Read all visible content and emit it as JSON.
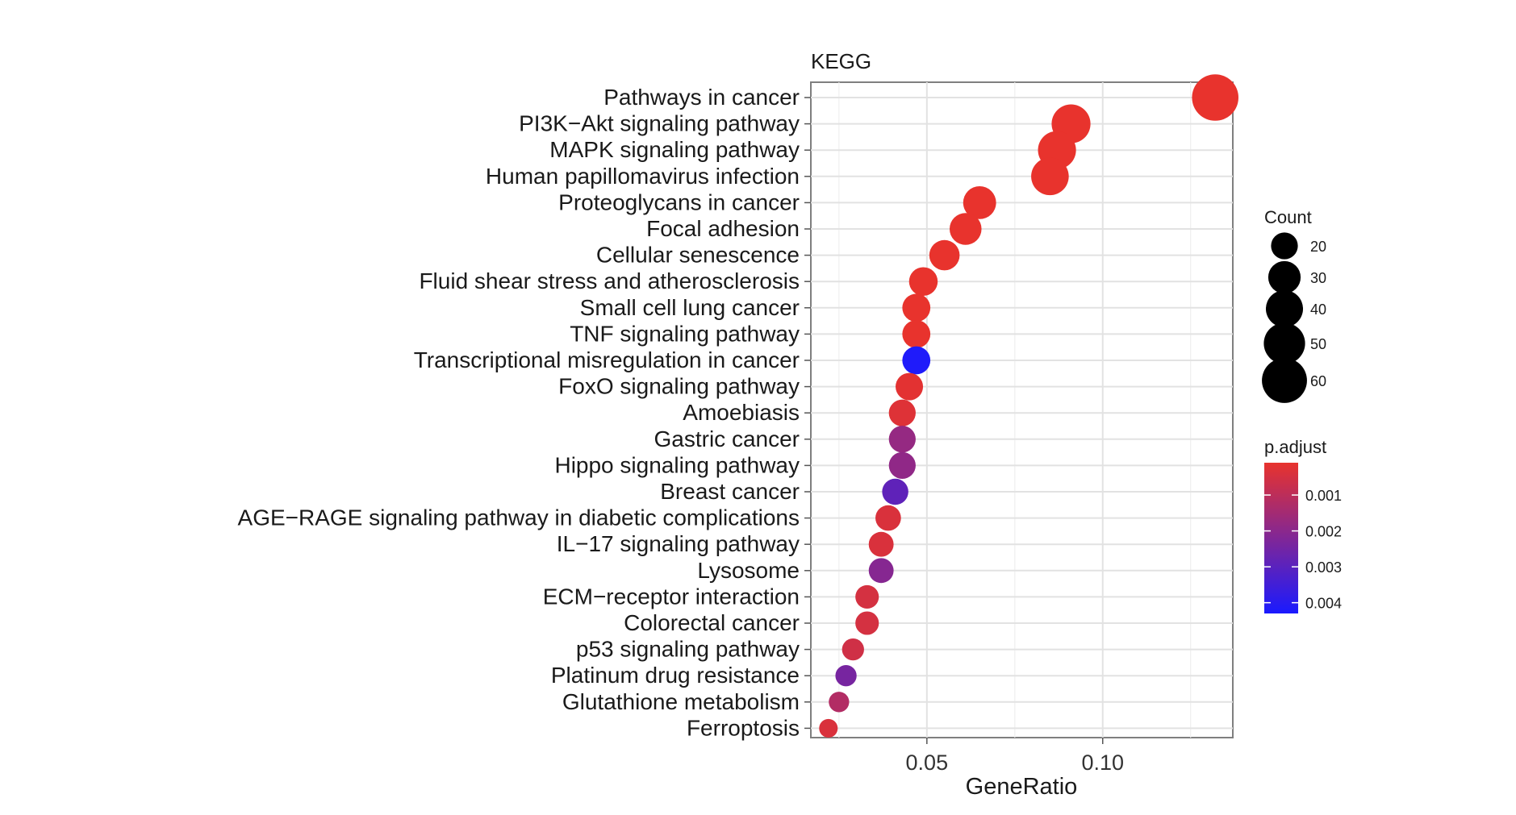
{
  "chart_data": {
    "type": "scatter",
    "title": "KEGG",
    "xlabel": "GeneRatio",
    "ylabel": "",
    "xlim": [
      0.017,
      0.137
    ],
    "x_ticks": [
      0.05,
      0.1
    ],
    "x_tick_labels": [
      "0.05",
      "0.10"
    ],
    "grid": true,
    "legend_position": "right",
    "categories": [
      "Pathways in cancer",
      "PI3K−Akt signaling pathway",
      "MAPK signaling pathway",
      "Human papillomavirus infection",
      "Proteoglycans in cancer",
      "Focal adhesion",
      "Cellular senescence",
      "Fluid shear stress and atherosclerosis",
      "Small cell lung cancer",
      "TNF signaling pathway",
      "Transcriptional misregulation in cancer",
      "FoxO signaling pathway",
      "Amoebiasis",
      "Gastric cancer",
      "Hippo signaling pathway",
      "Breast cancer",
      "AGE−RAGE signaling pathway in diabetic complications",
      "IL−17 signaling pathway",
      "Lysosome",
      "ECM−receptor interaction",
      "Colorectal cancer",
      "p53 signaling pathway",
      "Platinum drug resistance",
      "Glutathione metabolism",
      "Ferroptosis"
    ],
    "gene_ratio": [
      0.132,
      0.091,
      0.087,
      0.085,
      0.065,
      0.061,
      0.055,
      0.049,
      0.047,
      0.047,
      0.047,
      0.045,
      0.043,
      0.043,
      0.043,
      0.041,
      0.039,
      0.037,
      0.037,
      0.033,
      0.033,
      0.029,
      0.027,
      0.025,
      0.022
    ],
    "count": [
      64,
      44,
      42,
      41,
      31,
      29,
      26,
      23,
      22,
      22,
      22,
      21,
      20,
      20,
      20,
      19,
      18,
      17,
      17,
      15,
      15,
      13,
      12,
      11,
      9
    ],
    "p_adjust": [
      0.0001,
      0.0001,
      0.0001,
      0.0001,
      0.0001,
      0.0001,
      0.0001,
      0.0001,
      0.0001,
      0.0001,
      0.0042,
      0.0002,
      0.0003,
      0.0018,
      0.0019,
      0.0029,
      0.0004,
      0.0004,
      0.0021,
      0.0005,
      0.0005,
      0.0006,
      0.0024,
      0.0012,
      0.0004
    ],
    "size_legend": {
      "title": "Count",
      "values": [
        20,
        30,
        40,
        50,
        60
      ],
      "labels": [
        "20",
        "30",
        "40",
        "50",
        "60"
      ]
    },
    "color_legend": {
      "title": "p.adjust",
      "ticks": [
        0.001,
        0.002,
        0.003,
        0.004
      ],
      "labels": [
        "0.001",
        "0.002",
        "0.003",
        "0.004"
      ],
      "range": [
        0.0001,
        0.0043
      ],
      "low_color": "#e8332d",
      "high_color": "#1a1aff"
    }
  }
}
